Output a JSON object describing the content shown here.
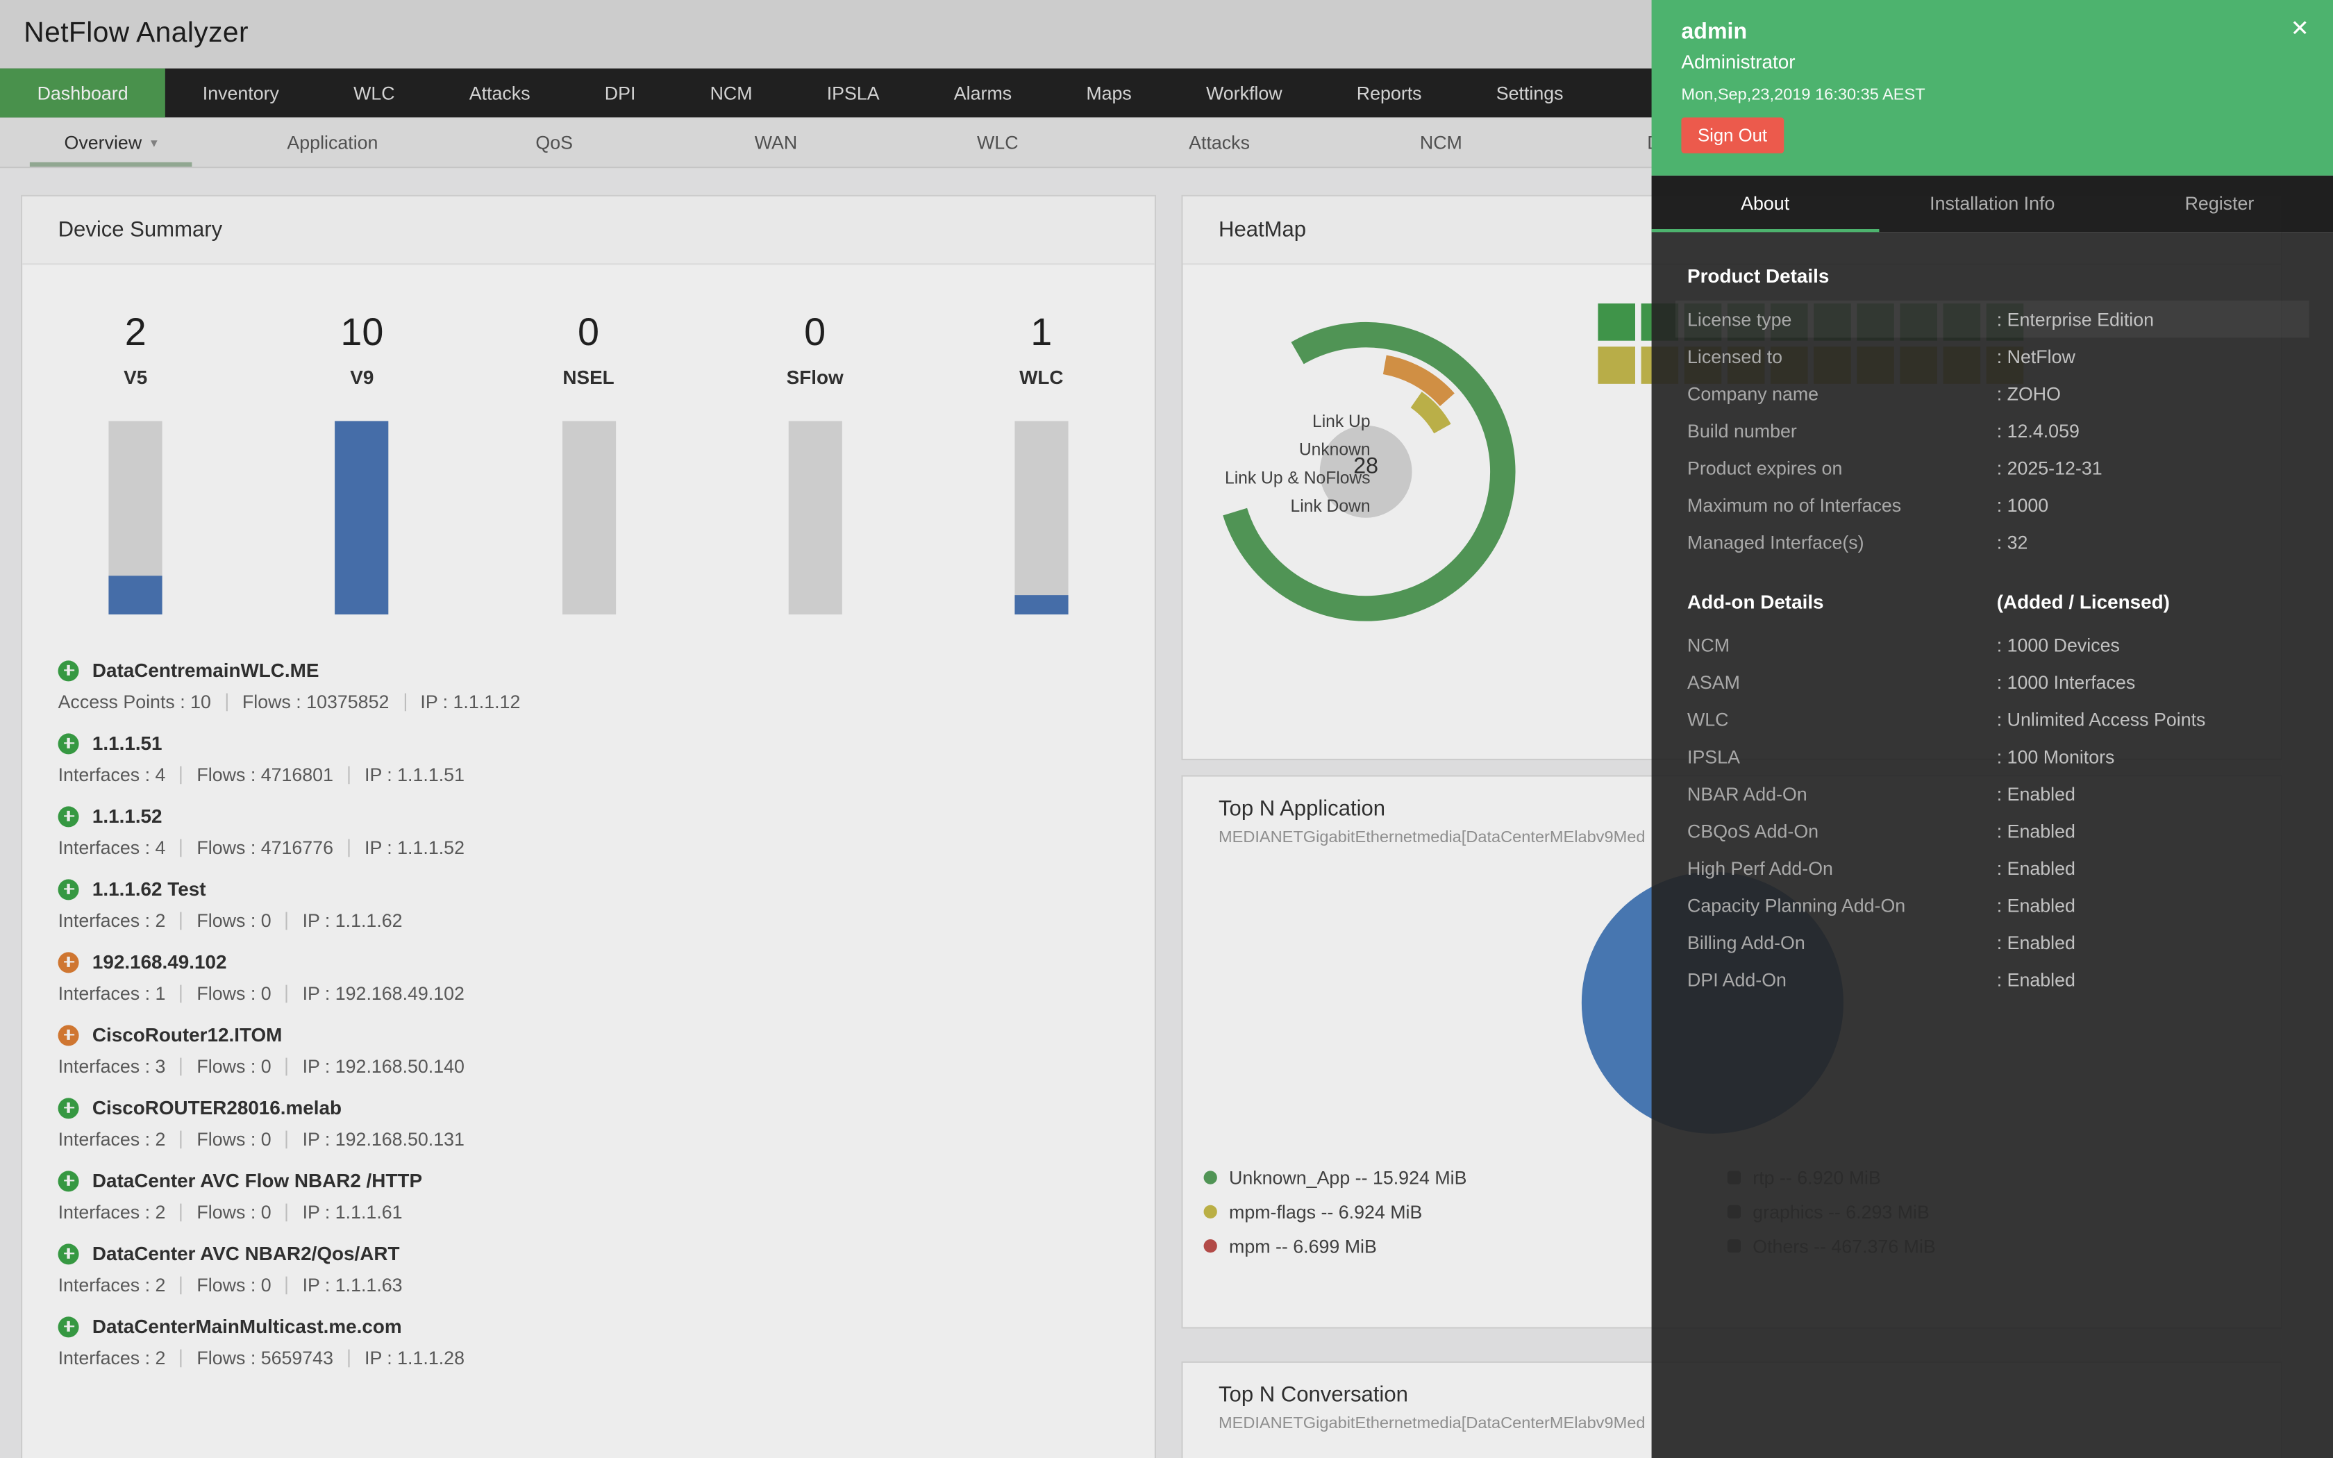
{
  "app": {
    "title": "NetFlow Analyzer"
  },
  "icons": {
    "close": "✕",
    "chevron_down": "▾"
  },
  "nav": {
    "active": "Dashboard",
    "items": [
      "Dashboard",
      "Inventory",
      "WLC",
      "Attacks",
      "DPI",
      "NCM",
      "IPSLA",
      "Alarms",
      "Maps",
      "Workflow",
      "Reports",
      "Settings"
    ]
  },
  "subnav": {
    "active": "Overview",
    "items": [
      "Overview",
      "Application",
      "QoS",
      "WAN",
      "WLC",
      "Attacks",
      "NCM",
      "DPI"
    ]
  },
  "device_summary": {
    "title": "Device Summary",
    "stats": [
      {
        "value": "2",
        "label": "V5"
      },
      {
        "value": "10",
        "label": "V9"
      },
      {
        "value": "0",
        "label": "NSEL"
      },
      {
        "value": "0",
        "label": "SFlow"
      },
      {
        "value": "1",
        "label": "WLC"
      }
    ],
    "devices": [
      {
        "name": "DataCentremainWLC.ME",
        "status": "up",
        "details": [
          "Access Points : 10",
          "Flows : 10375852",
          "IP : 1.1.1.12"
        ]
      },
      {
        "name": "1.1.1.51",
        "status": "up",
        "details": [
          "Interfaces : 4",
          "Flows : 4716801",
          "IP : 1.1.1.51"
        ]
      },
      {
        "name": "1.1.1.52",
        "status": "up",
        "details": [
          "Interfaces : 4",
          "Flows : 4716776",
          "IP : 1.1.1.52"
        ]
      },
      {
        "name": "1.1.1.62 Test",
        "status": "up",
        "details": [
          "Interfaces : 2",
          "Flows : 0",
          "IP : 1.1.1.62"
        ]
      },
      {
        "name": "192.168.49.102",
        "status": "warn",
        "details": [
          "Interfaces : 1",
          "Flows : 0",
          "IP : 192.168.49.102"
        ]
      },
      {
        "name": "CiscoRouter12.ITOM",
        "status": "warn",
        "details": [
          "Interfaces : 3",
          "Flows : 0",
          "IP : 192.168.50.140"
        ]
      },
      {
        "name": "CiscoROUTER28016.melab",
        "status": "up",
        "details": [
          "Interfaces : 2",
          "Flows : 0",
          "IP : 192.168.50.131"
        ]
      },
      {
        "name": "DataCenter AVC Flow NBAR2 /HTTP",
        "status": "up",
        "details": [
          "Interfaces : 2",
          "Flows : 0",
          "IP : 1.1.1.61"
        ]
      },
      {
        "name": "DataCenter AVC NBAR2/Qos/ART",
        "status": "up",
        "details": [
          "Interfaces : 2",
          "Flows : 0",
          "IP : 1.1.1.63"
        ]
      },
      {
        "name": "DataCenterMainMulticast.me.com",
        "status": "up",
        "details": [
          "Interfaces : 2",
          "Flows : 5659743",
          "IP : 1.1.1.28"
        ]
      }
    ]
  },
  "heatmap": {
    "title": "HeatMap",
    "center_value": "28",
    "legend": [
      "Link Up",
      "Unknown",
      "Link Up & NoFlows",
      "Link Down"
    ],
    "cell_rows": [
      {
        "status": "up",
        "count": 10
      },
      {
        "status": "noflows",
        "count": 10
      }
    ]
  },
  "top_n_application": {
    "title": "Top N Application",
    "subtitle": "MEDIANETGigabitEthernetmedia[DataCenterMElabv9Med",
    "legend": [
      {
        "label": "Unknown_App -- 15.924 MiB",
        "color": "#57a05c"
      },
      {
        "label": "mpm-flags -- 6.924 MiB",
        "color": "#c9bd4b"
      },
      {
        "label": "mpm -- 6.699 MiB",
        "color": "#c0504d"
      }
    ],
    "legend_occluded": [
      {
        "label": "rtp -- 6.920 MiB",
        "color": "#8e8e8e"
      },
      {
        "label": "graphics -- 6.293 MiB",
        "color": "#8e8e8e"
      },
      {
        "label": "Others -- 467.376 MiB",
        "color": "#8e8e8e"
      }
    ]
  },
  "top_n_conversation": {
    "title": "Top N Conversation",
    "subtitle": "MEDIANETGigabitEthernetmedia[DataCenterMElabv9Med"
  },
  "user_panel": {
    "username": "admin",
    "role": "Administrator",
    "timestamp": "Mon,Sep,23,2019 16:30:35 AEST",
    "sign_out_label": "Sign Out",
    "tabs": [
      "About",
      "Installation Info",
      "Register"
    ],
    "active_tab": "About",
    "product_details": {
      "heading": "Product Details",
      "rows": [
        {
          "label": "License type",
          "value": ": Enterprise Edition"
        },
        {
          "label": "Licensed to",
          "value": ": NetFlow"
        },
        {
          "label": "Company name",
          "value": ": ZOHO"
        },
        {
          "label": "Build number",
          "value": ": 12.4.059"
        },
        {
          "label": "Product expires on",
          "value": ": 2025-12-31"
        },
        {
          "label": "Maximum no of Interfaces",
          "value": ": 1000"
        },
        {
          "label": "Managed Interface(s)",
          "value": ": 32"
        }
      ]
    },
    "addon_details": {
      "heading": "Add-on Details",
      "subheading": "(Added / Licensed)",
      "rows": [
        {
          "label": "NCM",
          "value": ": 1000 Devices"
        },
        {
          "label": "ASAM",
          "value": ": 1000 Interfaces"
        },
        {
          "label": "WLC",
          "value": ": Unlimited Access Points"
        },
        {
          "label": "IPSLA",
          "value": ": 100 Monitors"
        },
        {
          "label": "NBAR Add-On",
          "value": ": Enabled"
        },
        {
          "label": "CBQoS Add-On",
          "value": ": Enabled"
        },
        {
          "label": "High Perf Add-On",
          "value": ": Enabled"
        },
        {
          "label": "Capacity Planning Add-On",
          "value": ": Enabled"
        },
        {
          "label": "Billing Add-On",
          "value": ": Enabled"
        },
        {
          "label": "DPI Add-On",
          "value": ": Enabled"
        }
      ]
    }
  },
  "colors": {
    "nav_active_green": "#4f9d52",
    "panel_green": "#4db36e",
    "sign_out_red": "#ec5a4c",
    "bar_blue": "#4b76b5",
    "status_up_green": "#3ba447",
    "status_warn_orange": "#df7f35",
    "donut_link_up": "#57a05c",
    "donut_link_down": "#e09a4a",
    "donut_link_up_noflows": "#c9bd4e",
    "heatmap_cell_green": "#44a04f",
    "heatmap_cell_yellow": "#c6bb4e",
    "pie_blue": "#4d7fbe"
  },
  "chart_data": [
    {
      "type": "bar",
      "title": "Device Summary",
      "categories": [
        "V5",
        "V9",
        "NSEL",
        "SFlow",
        "WLC"
      ],
      "values": [
        2,
        10,
        0,
        0,
        1
      ],
      "ylim": [
        0,
        10
      ],
      "xlabel": "",
      "ylabel": ""
    },
    {
      "type": "pie",
      "title": "HeatMap (interface status donut)",
      "center_label": "28",
      "categories": [
        "Link Up",
        "Unknown",
        "Link Up & NoFlows",
        "Link Down"
      ],
      "values": [
        22,
        1,
        2,
        3
      ],
      "legend_position": "left"
    },
    {
      "type": "pie",
      "title": "Top N Application",
      "categories": [
        "Unknown_App",
        "mpm-flags",
        "mpm"
      ],
      "values": [
        15.924,
        6.924,
        6.699
      ],
      "unit": "MiB",
      "legend_position": "bottom-left"
    }
  ]
}
